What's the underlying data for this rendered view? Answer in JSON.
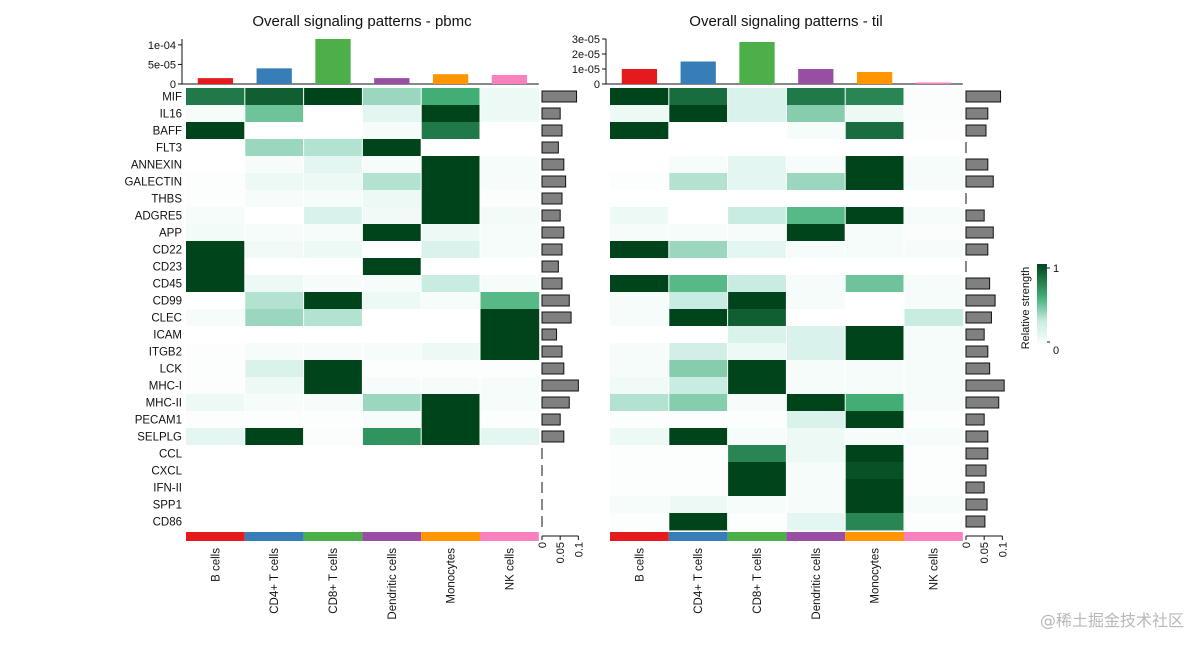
{
  "chart_data": [
    {
      "type": "heatmap",
      "title": "Overall signaling patterns - pbmc",
      "cell_types": [
        "B cells",
        "CD4+ T cells",
        "CD8+ T cells",
        "Dendritic cells",
        "Monocytes",
        "NK cells"
      ],
      "cell_colors": [
        "#e41a1c",
        "#377eb8",
        "#4daf4a",
        "#984ea3",
        "#ff9500",
        "#f781bf"
      ],
      "pathways": [
        "MIF",
        "IL16",
        "BAFF",
        "FLT3",
        "ANNEXIN",
        "GALECTIN",
        "THBS",
        "ADGRE5",
        "APP",
        "CD22",
        "CD23",
        "CD45",
        "CD99",
        "CLEC",
        "ICAM",
        "ITGB2",
        "LCK",
        "MHC-I",
        "MHC-II",
        "PECAM1",
        "SELPLG",
        "CCL",
        "CXCL",
        "IFN-II",
        "SPP1",
        "CD86"
      ],
      "values": [
        [
          0.8,
          0.9,
          1.0,
          0.4,
          0.6,
          0.1
        ],
        [
          0.05,
          0.5,
          0.0,
          0.15,
          1.0,
          0.1
        ],
        [
          1.0,
          0.0,
          0.0,
          0.05,
          0.8,
          0.0
        ],
        [
          0.0,
          0.4,
          0.35,
          1.0,
          0.0,
          0.0
        ],
        [
          0.0,
          0.05,
          0.15,
          0.05,
          1.0,
          0.05
        ],
        [
          0.02,
          0.1,
          0.1,
          0.35,
          1.0,
          0.05
        ],
        [
          0.02,
          0.05,
          0.05,
          0.1,
          1.0,
          0.03
        ],
        [
          0.05,
          0.0,
          0.2,
          0.08,
          1.0,
          0.07
        ],
        [
          0.07,
          0.05,
          0.05,
          1.0,
          0.1,
          0.05
        ],
        [
          1.0,
          0.08,
          0.1,
          0.0,
          0.2,
          0.05
        ],
        [
          1.0,
          0.0,
          0.0,
          1.0,
          0.0,
          0.0
        ],
        [
          1.0,
          0.1,
          0.05,
          0.05,
          0.3,
          0.05
        ],
        [
          0.0,
          0.35,
          1.0,
          0.1,
          0.05,
          0.55
        ],
        [
          0.05,
          0.4,
          0.35,
          0.0,
          0.0,
          1.0
        ],
        [
          0.0,
          0.0,
          0.0,
          0.0,
          0.0,
          1.0
        ],
        [
          0.02,
          0.05,
          0.05,
          0.05,
          0.1,
          1.0
        ],
        [
          0.02,
          0.2,
          1.0,
          0.02,
          0.02,
          0.02
        ],
        [
          0.02,
          0.1,
          1.0,
          0.05,
          0.05,
          0.05
        ],
        [
          0.1,
          0.05,
          0.05,
          0.4,
          1.0,
          0.05
        ],
        [
          0.02,
          0.02,
          0.02,
          0.05,
          1.0,
          0.02
        ],
        [
          0.15,
          1.0,
          0.03,
          0.7,
          1.0,
          0.15
        ],
        [
          0,
          0,
          0,
          0,
          0,
          0
        ],
        [
          0,
          0,
          0,
          0,
          0,
          0
        ],
        [
          0,
          0,
          0,
          0,
          0,
          0
        ],
        [
          0,
          0,
          0,
          0,
          0,
          0
        ],
        [
          0,
          0,
          0,
          0,
          0,
          0
        ]
      ],
      "top_bar_values": [
        1.5e-05,
        4e-05,
        0.000115,
        1.5e-05,
        2.5e-05,
        2.3e-05
      ],
      "top_axis_max": 0.000115,
      "top_axis_ticks": [
        0,
        5e-05,
        0.0001
      ],
      "top_axis_tick_labels": [
        "0",
        "5e-05",
        "1e-04"
      ],
      "right_bar_values": [
        0.095,
        0.05,
        0.055,
        0.045,
        0.06,
        0.065,
        0.055,
        0.05,
        0.06,
        0.055,
        0.045,
        0.055,
        0.075,
        0.08,
        0.04,
        0.055,
        0.06,
        0.1,
        0.075,
        0.05,
        0.06,
        0,
        0,
        0,
        0,
        0
      ],
      "right_axis_ticks": [
        0,
        0.05,
        0.1
      ],
      "right_axis_tick_labels": [
        "0",
        "0.05",
        "0.1"
      ]
    },
    {
      "type": "heatmap",
      "title": "Overall signaling patterns - til",
      "cell_types": [
        "B cells",
        "CD4+ T cells",
        "CD8+ T cells",
        "Dendritic cells",
        "Monocytes",
        "NK cells"
      ],
      "cell_colors": [
        "#e41a1c",
        "#377eb8",
        "#4daf4a",
        "#984ea3",
        "#ff9500",
        "#f781bf"
      ],
      "pathways": [
        "MIF",
        "IL16",
        "BAFF",
        "FLT3",
        "ANNEXIN",
        "GALECTIN",
        "THBS",
        "ADGRE5",
        "APP",
        "CD22",
        "CD23",
        "CD45",
        "CD99",
        "CLEC",
        "ICAM",
        "ITGB2",
        "LCK",
        "MHC-I",
        "MHC-II",
        "PECAM1",
        "SELPLG",
        "CCL",
        "CXCL",
        "IFN-II",
        "SPP1",
        "CD86"
      ],
      "values": [
        [
          1.0,
          0.85,
          0.2,
          0.8,
          0.75,
          0.03
        ],
        [
          0.1,
          1.0,
          0.2,
          0.45,
          0.1,
          0.03
        ],
        [
          1.0,
          0.0,
          0.0,
          0.05,
          0.85,
          0.02
        ],
        [
          0,
          0,
          0,
          0,
          0,
          0
        ],
        [
          0.0,
          0.05,
          0.15,
          0.05,
          1.0,
          0.05
        ],
        [
          0.02,
          0.35,
          0.15,
          0.4,
          1.0,
          0.05
        ],
        [
          0,
          0,
          0,
          0,
          0,
          0
        ],
        [
          0.1,
          0.0,
          0.3,
          0.55,
          1.0,
          0.05
        ],
        [
          0.05,
          0.05,
          0.05,
          1.0,
          0.05,
          0.03
        ],
        [
          1.0,
          0.4,
          0.15,
          0.05,
          0.05,
          0.05
        ],
        [
          0,
          0,
          0,
          0,
          0,
          0
        ],
        [
          1.0,
          0.55,
          0.3,
          0.05,
          0.5,
          0.05
        ],
        [
          0.05,
          0.3,
          1.0,
          0.05,
          0.0,
          0.05
        ],
        [
          0.05,
          1.0,
          0.9,
          0.0,
          0.0,
          0.3
        ],
        [
          0.0,
          0.0,
          0.2,
          0.2,
          1.0,
          0.05
        ],
        [
          0.05,
          0.25,
          0.1,
          0.2,
          1.0,
          0.05
        ],
        [
          0.05,
          0.45,
          1.0,
          0.05,
          0.05,
          0.05
        ],
        [
          0.08,
          0.3,
          1.0,
          0.05,
          0.05,
          0.05
        ],
        [
          0.35,
          0.45,
          0.05,
          1.0,
          0.6,
          0.05
        ],
        [
          0.02,
          0.02,
          0.02,
          0.2,
          1.0,
          0.02
        ],
        [
          0.1,
          1.0,
          0.05,
          0.1,
          0.05,
          0.05
        ],
        [
          0.02,
          0.02,
          0.75,
          0.1,
          1.0,
          0.02
        ],
        [
          0.02,
          0.02,
          1.0,
          0.05,
          0.95,
          0.02
        ],
        [
          0.02,
          0.02,
          1.0,
          0.05,
          1.0,
          0.02
        ],
        [
          0.05,
          0.1,
          0.05,
          0.05,
          1.0,
          0.05
        ],
        [
          0.02,
          1.0,
          0.02,
          0.15,
          0.75,
          0.02
        ]
      ],
      "top_bar_values": [
        1e-05,
        1.5e-05,
        2.8e-05,
        1e-05,
        8e-06,
        1e-06
      ],
      "top_axis_max": 3e-05,
      "top_axis_ticks": [
        0,
        1e-05,
        2e-05,
        3e-05
      ],
      "top_axis_tick_labels": [
        "0",
        "1e-05",
        "2e-05",
        "3e-05"
      ],
      "right_bar_values": [
        0.095,
        0.06,
        0.055,
        0,
        0.06,
        0.075,
        0,
        0.05,
        0.075,
        0.06,
        0,
        0.065,
        0.08,
        0.07,
        0.05,
        0.06,
        0.065,
        0.105,
        0.09,
        0.05,
        0.06,
        0.06,
        0.055,
        0.05,
        0.058,
        0.052
      ],
      "right_axis_ticks": [
        0,
        0.05,
        0.1
      ],
      "right_axis_tick_labels": [
        "0",
        "0.05",
        "0.1"
      ]
    }
  ],
  "legend": {
    "title": "Relative strength",
    "max_label": "1",
    "min_label": "0",
    "color_low": "#ffffff",
    "color_high": "#00441b"
  },
  "watermark": "@稀土掘金技术社区"
}
